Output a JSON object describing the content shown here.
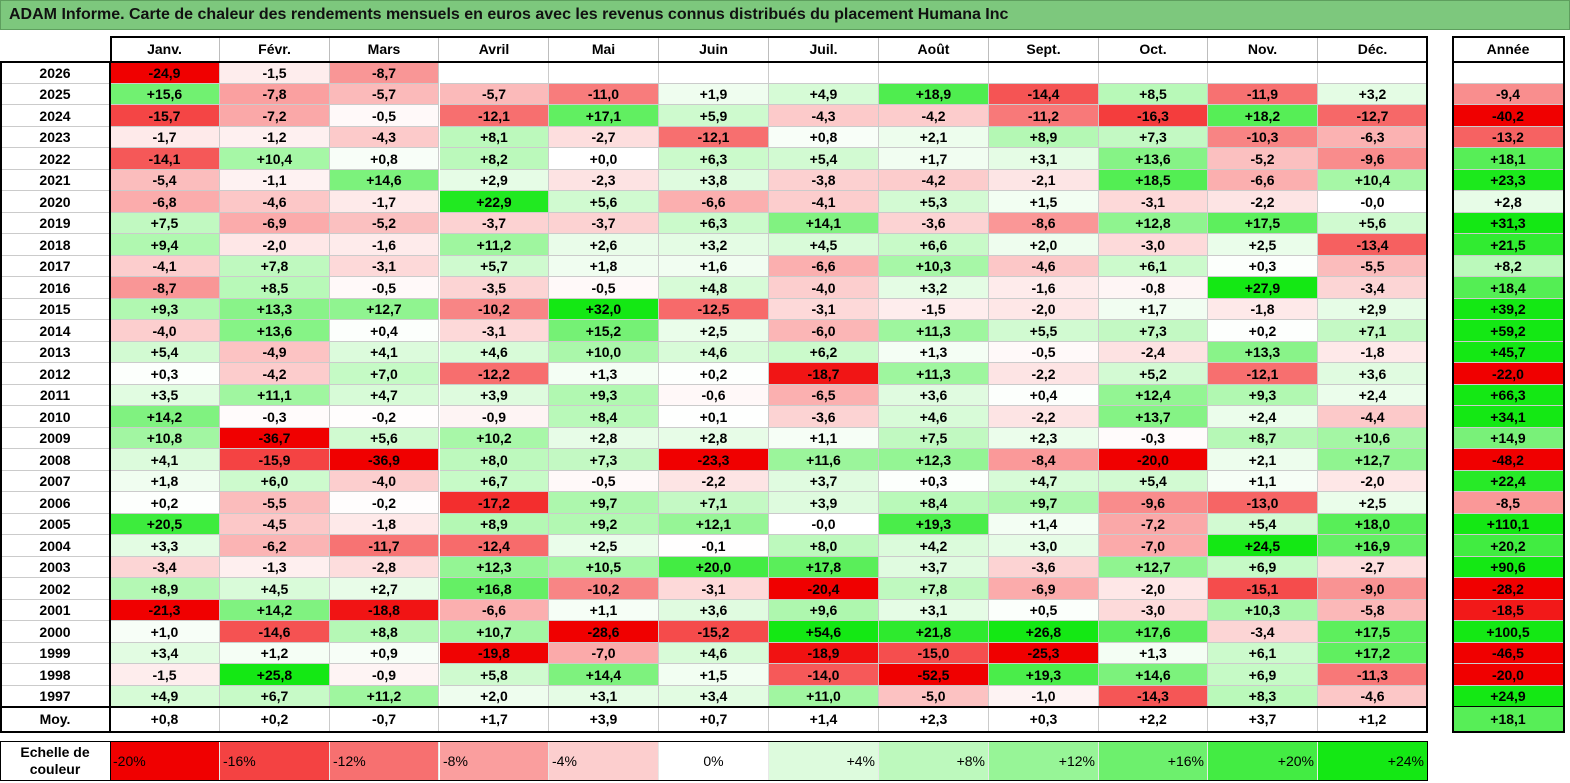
{
  "theme": {
    "title_bar_color": "#7DC87D",
    "title_bar_border": "#5E9F5E"
  },
  "chart_data": {
    "type": "heatmap",
    "title": "ADAM Informe. Carte de chaleur des rendements mensuels en euros avec les revenus connus distribués du placement Humana Inc",
    "columns": [
      "Janv.",
      "Févr.",
      "Mars",
      "Avril",
      "Mai",
      "Juin",
      "Juil.",
      "Août",
      "Sept.",
      "Oct.",
      "Nov.",
      "Déc."
    ],
    "annual_label": "Année",
    "rows": [
      {
        "year": "2026",
        "values": [
          "-24,9",
          "-1,5",
          "-8,7",
          "",
          "",
          "",
          "",
          "",
          "",
          "",
          "",
          ""
        ],
        "annual": ""
      },
      {
        "year": "2025",
        "values": [
          "+15,6",
          "-7,8",
          "-5,7",
          "-5,7",
          "-11,0",
          "+1,9",
          "+4,9",
          "+18,9",
          "-14,4",
          "+8,5",
          "-11,9",
          "+3,2"
        ],
        "annual": "-9,4"
      },
      {
        "year": "2024",
        "values": [
          "-15,7",
          "-7,2",
          "-0,5",
          "-12,1",
          "+17,1",
          "+5,9",
          "-4,3",
          "-4,2",
          "-11,2",
          "-16,3",
          "+18,2",
          "-12,7"
        ],
        "annual": "-40,2"
      },
      {
        "year": "2023",
        "values": [
          "-1,7",
          "-1,2",
          "-4,3",
          "+8,1",
          "-2,7",
          "-12,1",
          "+0,8",
          "+2,1",
          "+8,9",
          "+7,3",
          "-10,3",
          "-6,3"
        ],
        "annual": "-13,2"
      },
      {
        "year": "2022",
        "values": [
          "-14,1",
          "+10,4",
          "+0,8",
          "+8,2",
          "+0,0",
          "+6,3",
          "+5,4",
          "+1,7",
          "+3,1",
          "+13,6",
          "-5,2",
          "-9,6"
        ],
        "annual": "+18,1"
      },
      {
        "year": "2021",
        "values": [
          "-5,4",
          "-1,1",
          "+14,6",
          "+2,9",
          "-2,3",
          "+3,8",
          "-3,8",
          "-4,2",
          "-2,1",
          "+18,5",
          "-6,6",
          "+10,4"
        ],
        "annual": "+23,3"
      },
      {
        "year": "2020",
        "values": [
          "-6,8",
          "-4,6",
          "-1,7",
          "+22,9",
          "+5,6",
          "-6,6",
          "-4,1",
          "+5,3",
          "+1,5",
          "-3,1",
          "-2,2",
          "-0,0"
        ],
        "annual": "+2,8"
      },
      {
        "year": "2019",
        "values": [
          "+7,5",
          "-6,9",
          "-5,2",
          "-3,7",
          "-3,7",
          "+6,3",
          "+14,1",
          "-3,6",
          "-8,6",
          "+12,8",
          "+17,5",
          "+5,6"
        ],
        "annual": "+31,3"
      },
      {
        "year": "2018",
        "values": [
          "+9,4",
          "-2,0",
          "-1,6",
          "+11,2",
          "+2,6",
          "+3,2",
          "+4,5",
          "+6,6",
          "+2,0",
          "-3,0",
          "+2,5",
          "-13,4"
        ],
        "annual": "+21,5"
      },
      {
        "year": "2017",
        "values": [
          "-4,1",
          "+7,8",
          "-3,1",
          "+5,7",
          "+1,8",
          "+1,6",
          "-6,6",
          "+10,3",
          "-4,6",
          "+6,1",
          "+0,3",
          "-5,5"
        ],
        "annual": "+8,2"
      },
      {
        "year": "2016",
        "values": [
          "-8,7",
          "+8,5",
          "-0,5",
          "-3,5",
          "-0,5",
          "+4,8",
          "-4,0",
          "+3,2",
          "-1,6",
          "-0,8",
          "+27,9",
          "-3,4"
        ],
        "annual": "+18,4"
      },
      {
        "year": "2015",
        "values": [
          "+9,3",
          "+13,3",
          "+12,7",
          "-10,2",
          "+32,0",
          "-12,5",
          "-3,1",
          "-1,5",
          "-2,0",
          "+1,7",
          "-1,8",
          "+2,9"
        ],
        "annual": "+39,2"
      },
      {
        "year": "2014",
        "values": [
          "-4,0",
          "+13,6",
          "+0,4",
          "-3,1",
          "+15,2",
          "+2,5",
          "-6,0",
          "+11,3",
          "+5,5",
          "+7,3",
          "+0,2",
          "+7,1"
        ],
        "annual": "+59,2"
      },
      {
        "year": "2013",
        "values": [
          "+5,4",
          "-4,9",
          "+4,1",
          "+4,6",
          "+10,0",
          "+4,6",
          "+6,2",
          "+1,3",
          "-0,5",
          "-2,4",
          "+13,3",
          "-1,8"
        ],
        "annual": "+45,7"
      },
      {
        "year": "2012",
        "values": [
          "+0,3",
          "-4,2",
          "+7,0",
          "-12,2",
          "+1,3",
          "+0,2",
          "-18,7",
          "+11,3",
          "-2,2",
          "+5,2",
          "-12,1",
          "+3,6"
        ],
        "annual": "-22,0"
      },
      {
        "year": "2011",
        "values": [
          "+3,5",
          "+11,1",
          "+4,7",
          "+3,9",
          "+9,3",
          "-0,6",
          "-6,5",
          "+3,6",
          "+0,4",
          "+12,4",
          "+9,3",
          "+2,4"
        ],
        "annual": "+66,3"
      },
      {
        "year": "2010",
        "values": [
          "+14,2",
          "-0,3",
          "-0,2",
          "-0,9",
          "+8,4",
          "+0,1",
          "-3,6",
          "+4,6",
          "-2,2",
          "+13,7",
          "+2,4",
          "-4,4"
        ],
        "annual": "+34,1"
      },
      {
        "year": "2009",
        "values": [
          "+10,8",
          "-36,7",
          "+5,6",
          "+10,2",
          "+2,8",
          "+2,8",
          "+1,1",
          "+7,5",
          "+2,3",
          "-0,3",
          "+8,7",
          "+10,6"
        ],
        "annual": "+14,9"
      },
      {
        "year": "2008",
        "values": [
          "+4,1",
          "-15,9",
          "-36,9",
          "+8,0",
          "+7,3",
          "-23,3",
          "+11,6",
          "+12,3",
          "-8,4",
          "-20,0",
          "+2,1",
          "+12,7"
        ],
        "annual": "-48,2"
      },
      {
        "year": "2007",
        "values": [
          "+1,8",
          "+6,0",
          "-4,0",
          "+6,7",
          "-0,5",
          "-2,2",
          "+3,7",
          "+0,3",
          "+4,7",
          "+5,4",
          "+1,1",
          "-2,0"
        ],
        "annual": "+22,4"
      },
      {
        "year": "2006",
        "values": [
          "+0,2",
          "-5,5",
          "-0,2",
          "-17,2",
          "+9,7",
          "+7,1",
          "+3,9",
          "+8,4",
          "+9,7",
          "-9,6",
          "-13,0",
          "+2,5"
        ],
        "annual": "-8,5"
      },
      {
        "year": "2005",
        "values": [
          "+20,5",
          "-4,5",
          "-1,8",
          "+8,9",
          "+9,2",
          "+12,1",
          "-0,0",
          "+19,3",
          "+1,4",
          "-7,2",
          "+5,4",
          "+18,0"
        ],
        "annual": "+110,1"
      },
      {
        "year": "2004",
        "values": [
          "+3,3",
          "-6,2",
          "-11,7",
          "-12,4",
          "+2,5",
          "-0,1",
          "+8,0",
          "+4,2",
          "+3,0",
          "-7,0",
          "+24,5",
          "+16,9"
        ],
        "annual": "+20,2"
      },
      {
        "year": "2003",
        "values": [
          "-3,4",
          "-1,3",
          "-2,8",
          "+12,3",
          "+10,5",
          "+20,0",
          "+17,8",
          "+3,7",
          "-3,6",
          "+12,7",
          "+6,9",
          "-2,7"
        ],
        "annual": "+90,6"
      },
      {
        "year": "2002",
        "values": [
          "+8,9",
          "+4,5",
          "+2,7",
          "+16,8",
          "-10,2",
          "-3,1",
          "-20,4",
          "+7,8",
          "-6,9",
          "-2,0",
          "-15,1",
          "-9,0"
        ],
        "annual": "-28,2"
      },
      {
        "year": "2001",
        "values": [
          "-21,3",
          "+14,2",
          "-18,8",
          "-6,6",
          "+1,1",
          "+3,6",
          "+9,6",
          "+3,1",
          "+0,5",
          "-3,0",
          "+10,3",
          "-5,8"
        ],
        "annual": "-18,5"
      },
      {
        "year": "2000",
        "values": [
          "+1,0",
          "-14,6",
          "+8,8",
          "+10,7",
          "-28,6",
          "-15,2",
          "+54,6",
          "+21,8",
          "+26,8",
          "+17,6",
          "-3,4",
          "+17,5"
        ],
        "annual": "+100,5"
      },
      {
        "year": "1999",
        "values": [
          "+3,4",
          "+1,2",
          "+0,9",
          "-19,8",
          "-7,0",
          "+4,6",
          "-18,9",
          "-15,0",
          "-25,3",
          "+1,3",
          "+6,1",
          "+17,2"
        ],
        "annual": "-46,5"
      },
      {
        "year": "1998",
        "values": [
          "-1,5",
          "+25,8",
          "-0,9",
          "+5,8",
          "+14,4",
          "+1,5",
          "-14,0",
          "-52,5",
          "+19,3",
          "+14,6",
          "+6,9",
          "-11,3"
        ],
        "annual": "-20,0"
      },
      {
        "year": "1997",
        "values": [
          "+4,9",
          "+6,7",
          "+11,2",
          "+2,0",
          "+3,1",
          "+3,4",
          "+11,0",
          "-5,0",
          "-1,0",
          "-14,3",
          "+8,3",
          "-4,6"
        ],
        "annual": "+24,9"
      }
    ],
    "average_row": {
      "label": "Moy.",
      "values": [
        "+0,8",
        "+0,2",
        "-0,7",
        "+1,7",
        "+3,9",
        "+0,7",
        "+1,4",
        "+2,3",
        "+0,3",
        "+2,2",
        "+3,7",
        "+1,2"
      ],
      "annual": "+18,1"
    },
    "color_scale": {
      "label": "Echelle de couleur",
      "stops": [
        {
          "label": "-20%",
          "value": -20,
          "color": "#F00000"
        },
        {
          "label": "-16%",
          "value": -16,
          "color": "#F44242"
        },
        {
          "label": "-12%",
          "value": -12,
          "color": "#F77070"
        },
        {
          "label": "-8%",
          "value": -8,
          "color": "#FA9E9E"
        },
        {
          "label": "-4%",
          "value": -4,
          "color": "#FCCECE"
        },
        {
          "label": "0%",
          "value": 0,
          "color": "#FFFFFF"
        },
        {
          "label": "+4%",
          "value": 4,
          "color": "#DDFBDD"
        },
        {
          "label": "+8%",
          "value": 8,
          "color": "#BDF9BD"
        },
        {
          "label": "+12%",
          "value": 12,
          "color": "#97F597"
        },
        {
          "label": "+16%",
          "value": 16,
          "color": "#6DF06D"
        },
        {
          "label": "+20%",
          "value": 20,
          "color": "#43EC43"
        },
        {
          "label": "+24%",
          "value": 24,
          "color": "#14E814"
        }
      ]
    }
  }
}
